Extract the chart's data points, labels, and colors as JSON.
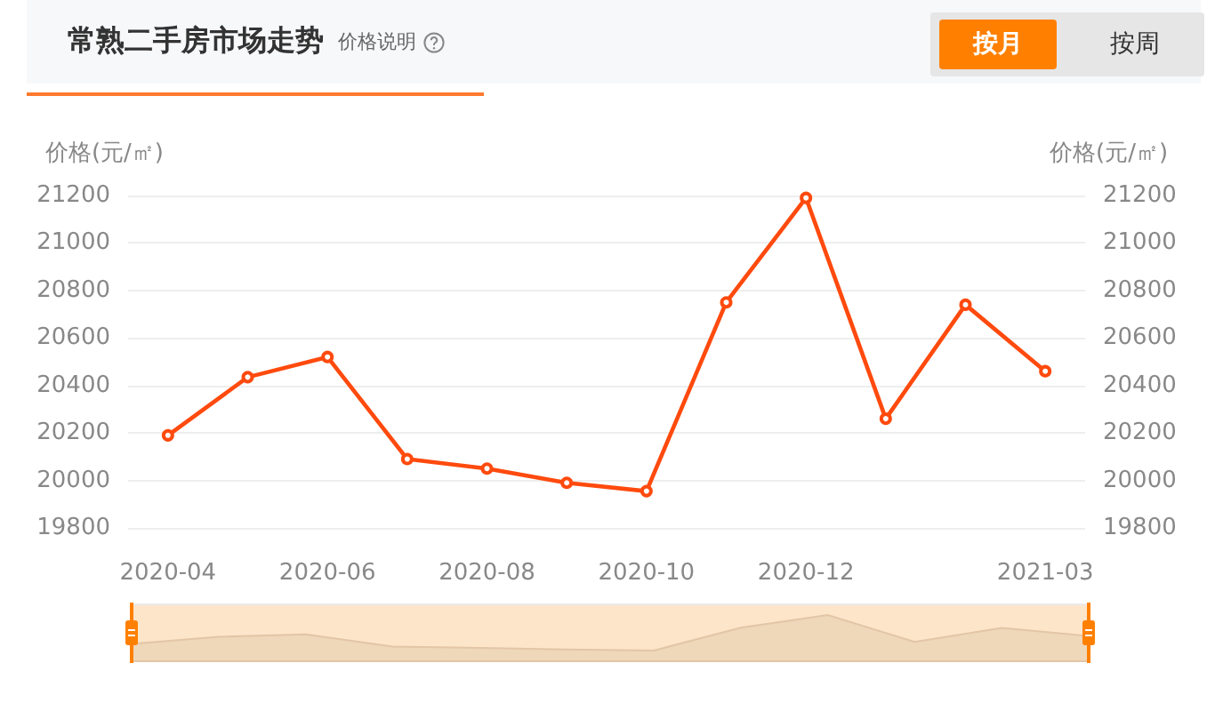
{
  "chart_data": {
    "type": "line",
    "title": "常熟二手房市场走势",
    "subtitle": "价格说明",
    "ylabel": "价格(元/㎡)",
    "y2label": "价格(元/㎡)",
    "annotations": [
      "按月",
      "按周"
    ],
    "categories": [
      "2020-04",
      null,
      "2020-06",
      null,
      "2020-08",
      null,
      "2020-10",
      null,
      "2020-12",
      null,
      null,
      "2021-03"
    ],
    "series": [
      {
        "color": "#ff4a0e",
        "values": [
          20190,
          20435,
          20520,
          20090,
          20050,
          19990,
          19955,
          20750,
          21190,
          20260,
          20740,
          20460
        ]
      }
    ],
    "ylim": [
      19800,
      21200
    ],
    "yticks": [
      19800,
      20000,
      20200,
      20400,
      20600,
      20800,
      21000,
      21200
    ],
    "y2lim": [
      19800,
      21200
    ],
    "y2ticks": [
      19800,
      20000,
      20200,
      20400,
      20600,
      20800,
      21000,
      21200
    ],
    "grid": "y",
    "marker": "circle",
    "line_style": "solid"
  }
}
